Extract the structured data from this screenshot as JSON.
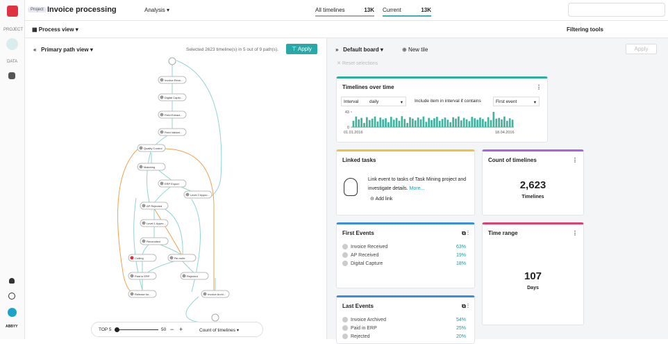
{
  "sidebar": {
    "project": "PROJECT",
    "data": "DATA",
    "brand": "ABBYY"
  },
  "header": {
    "badge": "Project",
    "title": "Invoice processing",
    "menu": "Analysis",
    "all_timelines": {
      "label": "All timelines",
      "value": "13K"
    },
    "current": {
      "label": "Current",
      "value": "13K"
    }
  },
  "toolbar": {
    "view": "Process view",
    "filtering": "Filtering tools"
  },
  "process_panel": {
    "title": "Primary path view",
    "selection": "Selected 2623 timeline(s) in 5 out of 9 path(s).",
    "apply": "Apply",
    "nodes": [
      "Invoice Rece...",
      "Digital Captu...",
      "Field Extract...",
      "Field Validat...",
      "Quality Control",
      "Matching",
      "ERP Export",
      "Level 2 Appro...",
      "AP Rejected",
      "Level 1 Appro...",
      "Reconciled",
      "Coding",
      "Re-route",
      "Paid in ERP",
      "Rejected",
      "Release for...",
      "Invoice Archi..."
    ],
    "controls": {
      "top": "TOP 5",
      "slider_max": "50",
      "minus": "−",
      "plus": "+",
      "metric": "Count of timelines"
    }
  },
  "board": {
    "name": "Default board",
    "new_tile": "New tile",
    "apply": "Apply",
    "reset": "Reset selections",
    "timelines_tile": {
      "title": "Timelines over time",
      "interval_label": "Interval",
      "interval": "daily",
      "include_label": "Include item in interval if contains",
      "include": "First event",
      "ylim": [
        0,
        43
      ],
      "yticks": [
        0,
        43
      ],
      "x_labels": [
        "01.01.2016",
        "18.04.2016"
      ],
      "values": [
        18,
        30,
        22,
        26,
        12,
        28,
        20,
        24,
        30,
        16,
        27,
        22,
        25,
        14,
        29,
        21,
        26,
        18,
        31,
        23,
        12,
        28,
        24,
        19,
        27,
        22,
        30,
        15,
        26,
        20,
        25,
        29,
        18,
        23,
        27,
        21,
        14,
        28,
        24,
        30,
        19,
        26,
        22,
        17,
        29,
        25,
        21,
        27,
        23,
        16,
        28,
        20,
        43,
        24,
        26,
        22,
        30,
        18,
        25,
        21
      ]
    },
    "linked_tasks": {
      "title": "Linked tasks",
      "text": "Link event to tasks of Task Mining project and investigate details.",
      "more": "More...",
      "add": "Add link"
    },
    "count_tile": {
      "title": "Count of timelines",
      "value": "2,623",
      "unit": "Timelines"
    },
    "first_events": {
      "title": "First Events",
      "rows": [
        [
          "Invoice Received",
          "63%"
        ],
        [
          "AP Received",
          "19%"
        ],
        [
          "Digital Capture",
          "18%"
        ]
      ]
    },
    "time_range": {
      "title": "Time range",
      "value": "107",
      "unit": "Days"
    },
    "last_events": {
      "title": "Last Events",
      "rows": [
        [
          "Invoice Archived",
          "54%"
        ],
        [
          "Paid in ERP",
          "25%"
        ],
        [
          "Rejected",
          "20%"
        ]
      ]
    }
  }
}
